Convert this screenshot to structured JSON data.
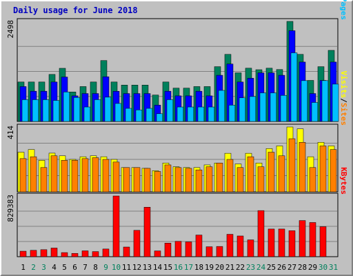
{
  "chart_data": {
    "type": "bar",
    "title": "Daily usage for June 2018",
    "categories": [
      "1",
      "2",
      "3",
      "4",
      "5",
      "6",
      "7",
      "8",
      "9",
      "10",
      "11",
      "12",
      "13",
      "14",
      "15",
      "16",
      "17",
      "18",
      "19",
      "20",
      "21",
      "22",
      "23",
      "24",
      "25",
      "26",
      "27",
      "28",
      "29",
      "30",
      "31"
    ],
    "weekend_days": [
      "2",
      "3",
      "9",
      "10",
      "16",
      "17",
      "23",
      "24",
      "30",
      "31"
    ],
    "weekday_color": "#000000",
    "weekend_color": "#00805c",
    "panels": [
      {
        "id": "hits-files-pages",
        "ymax_label": "2498",
        "ylim": [
          0,
          2498
        ],
        "side_labels": [
          {
            "text": "Hits",
            "color": "#00805c"
          },
          {
            "text": "/",
            "color": "#000000"
          },
          {
            "text": "Files",
            "color": "#0000ff"
          },
          {
            "text": "/",
            "color": "#000000"
          },
          {
            "text": "Pages",
            "color": "#00c0ff"
          }
        ],
        "series": [
          {
            "name": "Hits",
            "color": "#00805c",
            "values": [
              985,
              985,
              985,
              1174,
              1327,
              736,
              871,
              985,
              1521,
              985,
              908,
              908,
              908,
              660,
              985,
              832,
              832,
              871,
              871,
              1368,
              1675,
              1214,
              1330,
              1292,
              1330,
              1296,
              2498,
              1675,
              1025,
              1368,
              1775
            ]
          },
          {
            "name": "Files",
            "color": "#0000ff",
            "values": [
              871,
              755,
              755,
              985,
              1109,
              639,
              697,
              697,
              1116,
              754,
              697,
              697,
              697,
              407,
              755,
              639,
              639,
              755,
              639,
              1153,
              1434,
              985,
              1079,
              1214,
              1214,
              1153,
              2266,
              1483,
              697,
              1025,
              1483
            ]
          },
          {
            "name": "Pages",
            "color": "#00c0ff",
            "values": [
              544,
              544,
              544,
              525,
              736,
              599,
              361,
              544,
              606,
              449,
              327,
              288,
              327,
              193,
              544,
              361,
              361,
              361,
              361,
              775,
              407,
              591,
              622,
              714,
              714,
              651,
              1714,
              1019,
              474,
              1019,
              932
            ]
          }
        ]
      },
      {
        "id": "visits-sites",
        "ymax_label": "414",
        "ylim": [
          0,
          414
        ],
        "side_labels": [
          {
            "text": "Visits",
            "color": "#ffff00"
          },
          {
            "text": "/",
            "color": "#000000"
          },
          {
            "text": "Sites",
            "color": "#ff8000"
          }
        ],
        "series": [
          {
            "name": "Visits",
            "color": "#ffff00",
            "values": [
              253,
              270,
              201,
              247,
              230,
              207,
              224,
              230,
              224,
              207,
              155,
              155,
              150,
              135,
              184,
              160,
              155,
              155,
              172,
              184,
              246,
              178,
              246,
              184,
              276,
              293,
              414,
              402,
              224,
              316,
              293
            ]
          },
          {
            "name": "Sites",
            "color": "#ff8000",
            "values": [
              212,
              224,
              155,
              230,
              201,
              201,
              212,
              218,
              207,
              190,
              155,
              155,
              150,
              130,
              172,
              155,
              150,
              140,
              160,
              184,
              207,
              155,
              224,
              160,
              253,
              230,
              339,
              316,
              155,
              293,
              270
            ]
          }
        ]
      },
      {
        "id": "kbytes",
        "ymax_label": "829383",
        "ylim": [
          0,
          829383
        ],
        "side_labels": [
          {
            "text": "KBytes",
            "color": "#ff0000"
          }
        ],
        "series": [
          {
            "name": "KBytes",
            "color": "#ff0000",
            "values": [
              75000,
              87000,
              96000,
              118000,
              56000,
              45000,
              80000,
              70000,
              105000,
              829383,
              132000,
              360000,
              676000,
              79000,
              186000,
              210000,
              202000,
              296000,
              136000,
              140000,
              306000,
              283000,
              230000,
              630000,
              378000,
              378000,
              355000,
              494000,
              467000,
              410000,
              0
            ]
          }
        ]
      }
    ]
  }
}
